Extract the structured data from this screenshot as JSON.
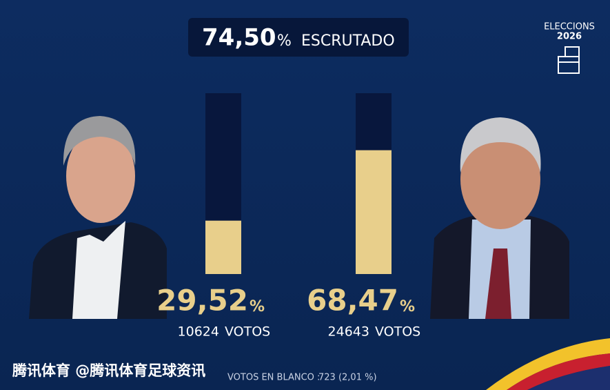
{
  "chart_data": {
    "type": "bar",
    "header": {
      "scrutiny": "74,50",
      "unit": "%",
      "label": "ESCRUTADO"
    },
    "logo": {
      "title": "ELECCIONS",
      "year": "2026"
    },
    "values": [
      29.52,
      68.47
    ],
    "value_labels": [
      "29,52",
      "68,47"
    ],
    "unit": "%",
    "votes": [
      10624,
      24643
    ],
    "votes_label": "VOTOS",
    "ylim": [
      0,
      100
    ],
    "color": "#e8cf8b",
    "track_color": "#08173d",
    "blank": {
      "label": "VOTOS EN BLANCO :",
      "value": "723 (2,01 %)"
    },
    "watermark": "腾讯体育 @腾讯体育足球资讯"
  }
}
